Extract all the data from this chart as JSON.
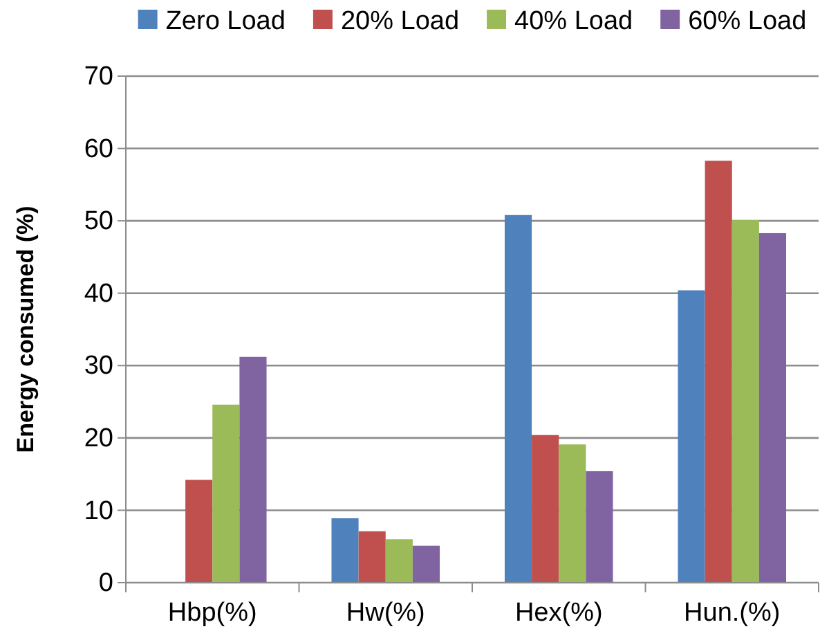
{
  "chart_data": {
    "type": "bar",
    "ylabel": "Energy consumed (%)",
    "categories": [
      "Hbp(%)",
      "Hw(%)",
      "Hex(%)",
      "Hun.(%)"
    ],
    "series": [
      {
        "name": "Zero Load",
        "color": "#4f81bd",
        "values": [
          0,
          8.9,
          50.8,
          40.4
        ]
      },
      {
        "name": "20% Load",
        "color": "#c0504d",
        "values": [
          14.2,
          7.1,
          20.4,
          58.3
        ]
      },
      {
        "name": "40% Load",
        "color": "#9bbb59",
        "values": [
          24.6,
          6.0,
          19.1,
          50.1
        ]
      },
      {
        "name": "60% Load",
        "color": "#8064a2",
        "values": [
          31.2,
          5.1,
          15.4,
          48.3
        ]
      }
    ],
    "ylim": [
      0,
      70
    ],
    "yticks": [
      0,
      10,
      20,
      30,
      40,
      50,
      60,
      70
    ],
    "grid": "y",
    "legend": "top"
  }
}
